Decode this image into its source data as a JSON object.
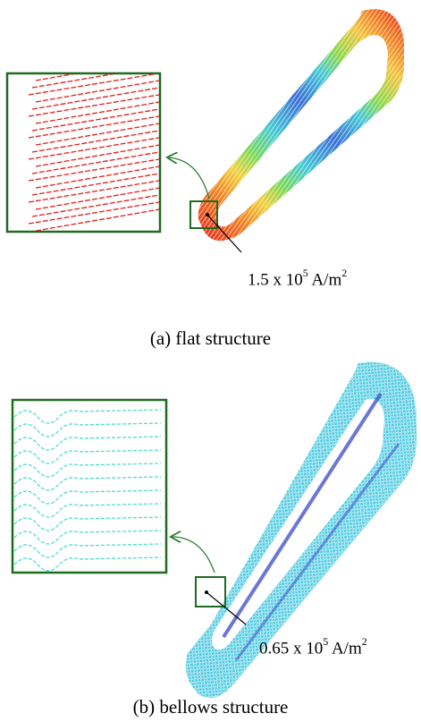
{
  "panels": [
    {
      "id": "a",
      "caption": "(a) flat structure",
      "annotation": {
        "prefix": "1.5 x 10",
        "exponent": "5",
        "unit": " A/m",
        "unit_exp": "2"
      }
    },
    {
      "id": "b",
      "caption": "(b) bellows structure",
      "annotation": {
        "prefix": "0.65 x 10",
        "exponent": "5",
        "unit": " A/m",
        "unit_exp": "2"
      }
    }
  ],
  "colors": {
    "inset_border": "#1f6b1f",
    "arrow_flat": "#e02020",
    "arrow_bellows": "#38d6c8",
    "leader_arrow": "#2e7d32"
  }
}
